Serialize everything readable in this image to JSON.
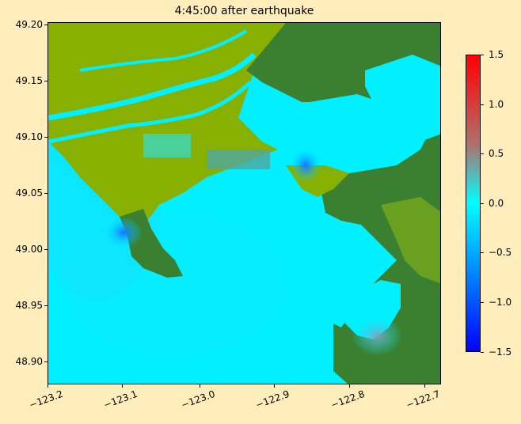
{
  "title": "4:45:00 after earthquake",
  "y_ticks": [
    "49.20",
    "49.15",
    "49.10",
    "49.05",
    "49.00",
    "48.95",
    "48.90"
  ],
  "x_ticks": [
    "−123.2",
    "−123.1",
    "−123.0",
    "−122.9",
    "−122.8",
    "−122.7"
  ],
  "colorbar": {
    "ticks": [
      "1.5",
      "1.0",
      "0.5",
      "0.0",
      "−0.5",
      "−1.0",
      "−1.5"
    ],
    "range": [
      -1.5,
      1.5
    ],
    "colors": {
      "top": "#ff0000",
      "upper": "#b0706a",
      "mid": "#00ffff",
      "lower": "#0099ff",
      "bottom": "#0000ff"
    }
  },
  "map_colors": {
    "water": "#00f0ff",
    "lowland": "#88b000",
    "highland": "#3a8030",
    "deep": "#2a90ff"
  }
}
